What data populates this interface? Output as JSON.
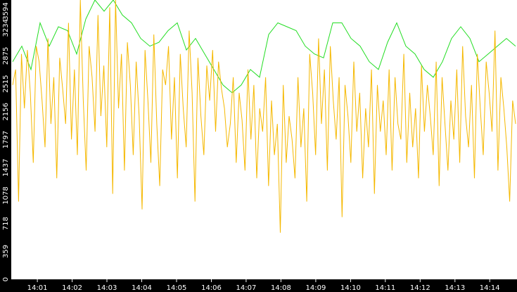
{
  "chart_data": {
    "type": "line",
    "title": "",
    "xlabel": "",
    "ylabel": "",
    "ylim": [
      0,
      3594
    ],
    "grid": false,
    "legend": "none",
    "y_ticks": [
      "0",
      "359",
      "718",
      "1078",
      "1437",
      "1797",
      "2156",
      "2515",
      "2875",
      "3234",
      "3594"
    ],
    "y_tick_values": [
      0,
      359,
      718,
      1078,
      1437,
      1797,
      2156,
      2515,
      2875,
      3234,
      3594
    ],
    "x_ticks": [
      "14:01",
      "14:02",
      "14:03",
      "14:04",
      "14:05",
      "14:06",
      "14:07",
      "14:08",
      "14:09",
      "14:10",
      "14:11",
      "14:12",
      "14:13",
      "14:14"
    ],
    "x_range": [
      "14:00:15",
      "14:14:47"
    ],
    "colors": {
      "background": "#ffffff",
      "axis_bar": "#000000",
      "tick_text": "#ffffff",
      "series_max": "#22dd22",
      "series_main": "#f5b800"
    },
    "series": [
      {
        "name": "",
        "color": "#22dd22",
        "envelope_max": [
          2800,
          3000,
          2700,
          3300,
          3000,
          3250,
          3200,
          2900,
          3350,
          3594,
          3450,
          3594,
          3400,
          3300,
          3100,
          3000,
          3050,
          3200,
          3300,
          2950,
          3100,
          2900,
          2700,
          2500,
          2400,
          2500,
          2700,
          2600,
          3150,
          3300,
          3250,
          3200,
          3000,
          2900,
          2850,
          3300,
          3300,
          3100,
          3000,
          2800,
          2700,
          3050,
          3300,
          3000,
          2900,
          2700,
          2600,
          2800,
          3100,
          3250,
          3100,
          2800,
          2900,
          3000,
          3100,
          3000
        ]
      },
      {
        "name": "",
        "color": "#f5b800",
        "values": [
          2500,
          2700,
          1000,
          2900,
          2200,
          2950,
          2400,
          1500,
          3000,
          2800,
          2300,
          1700,
          3100,
          2000,
          2600,
          1300,
          2850,
          2450,
          2000,
          3300,
          1800,
          2700,
          1600,
          3594,
          2300,
          1400,
          3000,
          2600,
          1900,
          3400,
          2100,
          2750,
          1700,
          3500,
          1100,
          3594,
          2200,
          2900,
          1400,
          3050,
          2500,
          1600,
          2800,
          2100,
          900,
          2950,
          2300,
          1500,
          3150,
          2000,
          1200,
          2700,
          2500,
          3000,
          1800,
          2600,
          1300,
          2900,
          2200,
          1700,
          3200,
          2400,
          1000,
          2850,
          2100,
          1600,
          2750,
          2300,
          2950,
          1900,
          2800,
          2450,
          2200,
          1700,
          2000,
          2600,
          1500,
          2400,
          2050,
          1400,
          2700,
          1800,
          2500,
          1300,
          2200,
          1900,
          2600,
          1200,
          2300,
          1600,
          2000,
          600,
          2500,
          1500,
          2100,
          1800,
          1300,
          2600,
          1700,
          2200,
          1000,
          2900,
          2400,
          1600,
          3100,
          2000,
          2700,
          1400,
          3000,
          2300,
          1800,
          2600,
          800,
          2500,
          2100,
          1500,
          2800,
          1900,
          2400,
          1300,
          2200,
          1700,
          2700,
          1100,
          2500,
          1900,
          2300,
          1600,
          2700,
          1400,
          2600,
          2000,
          1800,
          2900,
          1500,
          2400,
          1700,
          2200,
          1300,
          2750,
          1900,
          2500,
          2100,
          1600,
          2800,
          1200,
          2600,
          2000,
          1400,
          2300,
          1800,
          2700,
          1500,
          3000,
          2100,
          1700,
          2500,
          1300,
          2900,
          2200,
          1600,
          2800,
          2400,
          1900,
          3200,
          1400,
          2600,
          2200,
          1700,
          1000,
          2300,
          2000
        ]
      }
    ]
  }
}
